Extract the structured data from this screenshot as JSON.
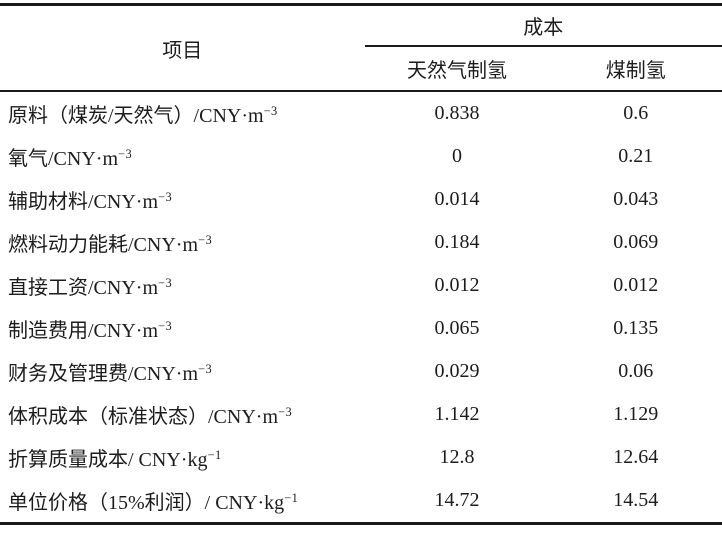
{
  "table": {
    "header": {
      "item_label": "项目",
      "cost_label": "成本",
      "natural_gas_label": "天然气制氢",
      "coal_label": "煤制氢"
    },
    "rows": [
      {
        "label": "原料（煤炭/天然气）/CNY·m",
        "sup": "−3",
        "natural_gas": "0.838",
        "coal": "0.6"
      },
      {
        "label": "氧气/CNY·m",
        "sup": "−3",
        "natural_gas": "0",
        "coal": "0.21"
      },
      {
        "label": "辅助材料/CNY·m",
        "sup": "−3",
        "natural_gas": "0.014",
        "coal": "0.043"
      },
      {
        "label": "燃料动力能耗/CNY·m",
        "sup": "−3",
        "natural_gas": "0.184",
        "coal": "0.069"
      },
      {
        "label": "直接工资/CNY·m",
        "sup": "−3",
        "natural_gas": "0.012",
        "coal": "0.012"
      },
      {
        "label": "制造费用/CNY·m",
        "sup": "−3",
        "natural_gas": "0.065",
        "coal": "0.135"
      },
      {
        "label": "财务及管理费/CNY·m",
        "sup": "−3",
        "natural_gas": "0.029",
        "coal": "0.06"
      },
      {
        "label": "体积成本（标准状态）/CNY·m",
        "sup": "−3",
        "natural_gas": "1.142",
        "coal": "1.129"
      },
      {
        "label": "折算质量成本/ CNY·kg",
        "sup": "−1",
        "natural_gas": "12.8",
        "coal": "12.64"
      },
      {
        "label": "单位价格（15%利润）/ CNY·kg",
        "sup": "−1",
        "natural_gas": "14.72",
        "coal": "14.54"
      }
    ]
  },
  "chart_data": {
    "type": "table",
    "title": "",
    "columns": [
      "项目",
      "天然气制氢",
      "煤制氢"
    ],
    "group_header": "成本",
    "rows": [
      [
        "原料（煤炭/天然气）/CNY·m⁻³",
        0.838,
        0.6
      ],
      [
        "氧气/CNY·m⁻³",
        0,
        0.21
      ],
      [
        "辅助材料/CNY·m⁻³",
        0.014,
        0.043
      ],
      [
        "燃料动力能耗/CNY·m⁻³",
        0.184,
        0.069
      ],
      [
        "直接工资/CNY·m⁻³",
        0.012,
        0.012
      ],
      [
        "制造费用/CNY·m⁻³",
        0.065,
        0.135
      ],
      [
        "财务及管理费/CNY·m⁻³",
        0.029,
        0.06
      ],
      [
        "体积成本（标准状态）/CNY·m⁻³",
        1.142,
        1.129
      ],
      [
        "折算质量成本/ CNY·kg⁻¹",
        12.8,
        12.64
      ],
      [
        "单位价格（15%利润）/ CNY·kg⁻¹",
        14.72,
        14.54
      ]
    ]
  },
  "colors": {
    "rule": "#1a1a1a",
    "text": "#1c1c1c",
    "background": "#ffffff"
  }
}
